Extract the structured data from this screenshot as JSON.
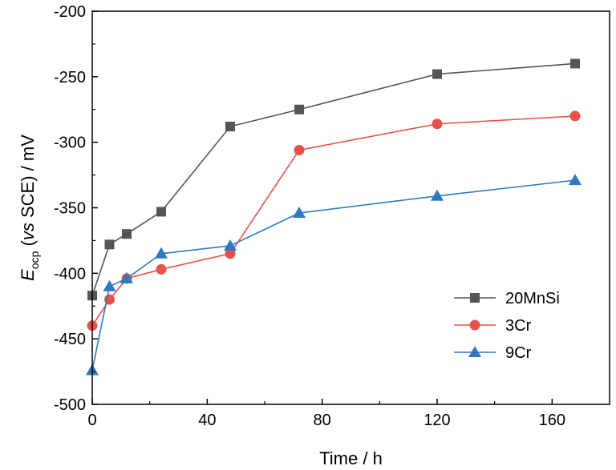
{
  "chart_data": {
    "type": "line",
    "xlabel": "Time / h",
    "ylabel_main": "E",
    "ylabel_sub": "ocp",
    "ylabel_open": " (",
    "ylabel_italic": "vs",
    "ylabel_rest": " SCE) / mV",
    "xlim": [
      0,
      180
    ],
    "ylim": [
      -500,
      -200
    ],
    "xticks": [
      0,
      40,
      80,
      120,
      160
    ],
    "xtick_labels": [
      "0",
      "40",
      "80",
      "120",
      "160"
    ],
    "yticks": [
      -500,
      -450,
      -400,
      -350,
      -300,
      -250,
      -200
    ],
    "ytick_labels": [
      "-500",
      "-450",
      "-400",
      "-350",
      "-300",
      "-250",
      "-200"
    ],
    "grid": false,
    "legend_position": "bottom-right",
    "series": [
      {
        "name": "20MnSi",
        "color": "#555555",
        "marker": "square",
        "x": [
          0,
          6,
          12,
          24,
          48,
          72,
          120,
          168
        ],
        "y": [
          -417,
          -378,
          -370,
          -353,
          -288,
          -275,
          -248,
          -240
        ]
      },
      {
        "name": "3Cr",
        "color": "#e8514a",
        "marker": "circle",
        "x": [
          0,
          6,
          12,
          24,
          48,
          72,
          120,
          168
        ],
        "y": [
          -440,
          -420,
          -404,
          -397,
          -385,
          -306,
          -286,
          -280
        ]
      },
      {
        "name": "9Cr",
        "color": "#2f78c0",
        "marker": "triangle",
        "x": [
          0,
          6,
          12,
          24,
          48,
          72,
          120,
          168
        ],
        "y": [
          -474,
          -410,
          -404,
          -385,
          -379,
          -354,
          -341,
          -329
        ]
      }
    ]
  }
}
